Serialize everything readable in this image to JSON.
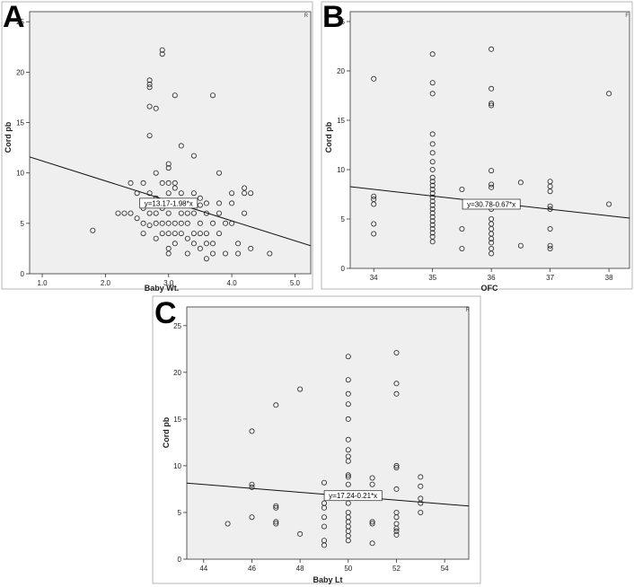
{
  "chart_data": [
    {
      "panel": "A",
      "type": "scatter",
      "xlabel": "Baby Wt.",
      "ylabel": "Cord pb",
      "xlim": [
        0.8,
        5.25
      ],
      "ylim": [
        0,
        26
      ],
      "xticks": [
        "1.0",
        "2.0",
        "3.0",
        "4.0",
        "5.0"
      ],
      "xtick_values": [
        1,
        2,
        3,
        4,
        5
      ],
      "yticks": [
        "0",
        "5",
        "10",
        "15",
        "20",
        "25"
      ],
      "ytick_values": [
        0,
        5,
        10,
        15,
        20,
        25
      ],
      "corner_mark": "R",
      "fit": {
        "label": "y=13.17-1.98*x",
        "intercept": 13.17,
        "slope": -1.98,
        "label_at": [
          3.0,
          7.0
        ]
      },
      "points": [
        [
          1.8,
          4.3
        ],
        [
          2.2,
          6
        ],
        [
          2.3,
          6
        ],
        [
          2.4,
          6
        ],
        [
          2.4,
          9
        ],
        [
          2.5,
          8
        ],
        [
          2.5,
          5.5
        ],
        [
          2.6,
          4
        ],
        [
          2.6,
          5
        ],
        [
          2.6,
          9
        ],
        [
          2.6,
          6.5
        ],
        [
          2.7,
          4.8
        ],
        [
          2.7,
          6
        ],
        [
          2.7,
          7
        ],
        [
          2.7,
          8
        ],
        [
          2.7,
          13.7
        ],
        [
          2.7,
          16.6
        ],
        [
          2.7,
          18.5
        ],
        [
          2.7,
          18.8
        ],
        [
          2.7,
          19.2
        ],
        [
          2.8,
          3.5
        ],
        [
          2.8,
          5
        ],
        [
          2.8,
          6
        ],
        [
          2.8,
          7.5
        ],
        [
          2.8,
          10
        ],
        [
          2.8,
          16.4
        ],
        [
          2.9,
          4
        ],
        [
          2.9,
          5
        ],
        [
          2.9,
          6.5
        ],
        [
          2.9,
          9
        ],
        [
          2.9,
          21.8
        ],
        [
          2.9,
          22.2
        ],
        [
          3.0,
          2
        ],
        [
          3.0,
          2.5
        ],
        [
          3.0,
          4
        ],
        [
          3.0,
          5
        ],
        [
          3.0,
          6
        ],
        [
          3.0,
          7
        ],
        [
          3.0,
          8
        ],
        [
          3.0,
          9
        ],
        [
          3.0,
          10.5
        ],
        [
          3.0,
          10.9
        ],
        [
          3.1,
          3
        ],
        [
          3.1,
          4
        ],
        [
          3.1,
          5
        ],
        [
          3.1,
          7
        ],
        [
          3.1,
          8.5
        ],
        [
          3.1,
          9
        ],
        [
          3.1,
          17.7
        ],
        [
          3.2,
          4
        ],
        [
          3.2,
          5
        ],
        [
          3.2,
          6
        ],
        [
          3.2,
          7
        ],
        [
          3.2,
          8
        ],
        [
          3.2,
          12.7
        ],
        [
          3.3,
          2
        ],
        [
          3.3,
          3.5
        ],
        [
          3.3,
          5
        ],
        [
          3.3,
          6
        ],
        [
          3.3,
          7
        ],
        [
          3.4,
          3
        ],
        [
          3.4,
          4
        ],
        [
          3.4,
          6
        ],
        [
          3.4,
          8
        ],
        [
          3.4,
          11.7
        ],
        [
          3.5,
          2.5
        ],
        [
          3.5,
          4
        ],
        [
          3.5,
          5
        ],
        [
          3.5,
          6.8
        ],
        [
          3.5,
          7.5
        ],
        [
          3.6,
          1.5
        ],
        [
          3.6,
          3
        ],
        [
          3.6,
          4
        ],
        [
          3.6,
          6
        ],
        [
          3.6,
          7
        ],
        [
          3.7,
          2
        ],
        [
          3.7,
          3
        ],
        [
          3.7,
          5
        ],
        [
          3.7,
          17.7
        ],
        [
          3.8,
          4
        ],
        [
          3.8,
          6
        ],
        [
          3.8,
          7
        ],
        [
          3.8,
          10
        ],
        [
          3.9,
          2
        ],
        [
          3.9,
          5
        ],
        [
          4.0,
          5
        ],
        [
          4.0,
          7
        ],
        [
          4.0,
          8
        ],
        [
          4.1,
          2
        ],
        [
          4.1,
          3
        ],
        [
          4.2,
          8
        ],
        [
          4.2,
          8.5
        ],
        [
          4.2,
          6
        ],
        [
          4.3,
          2.5
        ],
        [
          4.3,
          8
        ],
        [
          4.6,
          2
        ]
      ]
    },
    {
      "panel": "B",
      "type": "scatter",
      "xlabel": "OFC",
      "ylabel": "Cord pb",
      "xlim": [
        33.6,
        38.35
      ],
      "ylim": [
        0,
        26
      ],
      "xticks": [
        "34",
        "35",
        "36",
        "37",
        "38"
      ],
      "xtick_values": [
        34,
        35,
        36,
        37,
        38
      ],
      "yticks": [
        "0",
        "5",
        "10",
        "15",
        "20",
        "25"
      ],
      "ytick_values": [
        0,
        5,
        10,
        15,
        20,
        25
      ],
      "corner_mark": "F",
      "fit": {
        "label": "y=30.78-0.67*x",
        "intercept": 30.78,
        "slope": -0.67,
        "label_at": [
          36.0,
          6.5
        ]
      },
      "points": [
        [
          34,
          3.5
        ],
        [
          34,
          4.5
        ],
        [
          34,
          6.5
        ],
        [
          34,
          7
        ],
        [
          34,
          7.3
        ],
        [
          34,
          19.2
        ],
        [
          35,
          2.7
        ],
        [
          35,
          3.2
        ],
        [
          35,
          3.6
        ],
        [
          35,
          4
        ],
        [
          35,
          4.4
        ],
        [
          35,
          4.8
        ],
        [
          35,
          5.2
        ],
        [
          35,
          5.6
        ],
        [
          35,
          6
        ],
        [
          35,
          6.4
        ],
        [
          35,
          6.8
        ],
        [
          35,
          7.2
        ],
        [
          35,
          7.6
        ],
        [
          35,
          8
        ],
        [
          35,
          8.4
        ],
        [
          35,
          8.8
        ],
        [
          35,
          9.2
        ],
        [
          35,
          10
        ],
        [
          35,
          10.8
        ],
        [
          35,
          11.7
        ],
        [
          35,
          12.6
        ],
        [
          35,
          13.6
        ],
        [
          35,
          17.7
        ],
        [
          35,
          18.8
        ],
        [
          35,
          21.7
        ],
        [
          35.5,
          2
        ],
        [
          35.5,
          4
        ],
        [
          35.5,
          8
        ],
        [
          36,
          1.5
        ],
        [
          36,
          2
        ],
        [
          36,
          2.6
        ],
        [
          36,
          3
        ],
        [
          36,
          3.5
        ],
        [
          36,
          4
        ],
        [
          36,
          4.5
        ],
        [
          36,
          5
        ],
        [
          36,
          6
        ],
        [
          36,
          6.5
        ],
        [
          36,
          8.2
        ],
        [
          36,
          8.5
        ],
        [
          36,
          9.9
        ],
        [
          36,
          16.5
        ],
        [
          36,
          16.7
        ],
        [
          36,
          18.2
        ],
        [
          36,
          22.2
        ],
        [
          36.5,
          2.3
        ],
        [
          36.5,
          8.7
        ],
        [
          37,
          2
        ],
        [
          37,
          2.3
        ],
        [
          37,
          4
        ],
        [
          37,
          6
        ],
        [
          37,
          6.3
        ],
        [
          37,
          7.8
        ],
        [
          37,
          8.3
        ],
        [
          37,
          8.8
        ],
        [
          38,
          6.5
        ],
        [
          38,
          17.7
        ]
      ]
    },
    {
      "panel": "C",
      "type": "scatter",
      "xlabel": "Baby Lt",
      "ylabel": "Cord pb",
      "xlim": [
        43.3,
        55.0
      ],
      "ylim": [
        0,
        27
      ],
      "xticks": [
        "44",
        "46",
        "48",
        "50",
        "52",
        "54"
      ],
      "xtick_values": [
        44,
        46,
        48,
        50,
        52,
        54
      ],
      "yticks": [
        "0",
        "5",
        "10",
        "15",
        "20",
        "25"
      ],
      "ytick_values": [
        0,
        5,
        10,
        15,
        20,
        25
      ],
      "corner_mark": "R",
      "fit": {
        "label": "y=17.24-0.21*x",
        "intercept": 17.24,
        "slope": -0.21,
        "label_at": [
          50.2,
          6.8
        ]
      },
      "points": [
        [
          45,
          3.8
        ],
        [
          46,
          4.5
        ],
        [
          46,
          7.7
        ],
        [
          46,
          8
        ],
        [
          46,
          13.7
        ],
        [
          47,
          3.8
        ],
        [
          47,
          4
        ],
        [
          47,
          5.5
        ],
        [
          47,
          5.7
        ],
        [
          47,
          16.5
        ],
        [
          48,
          2.7
        ],
        [
          48,
          18.2
        ],
        [
          49,
          1.5
        ],
        [
          49,
          2
        ],
        [
          49,
          3.5
        ],
        [
          49,
          4.5
        ],
        [
          49,
          5.5
        ],
        [
          49,
          6
        ],
        [
          49,
          8.2
        ],
        [
          50,
          2
        ],
        [
          50,
          2.5
        ],
        [
          50,
          3
        ],
        [
          50,
          3.5
        ],
        [
          50,
          4
        ],
        [
          50,
          4.5
        ],
        [
          50,
          5
        ],
        [
          50,
          6
        ],
        [
          50,
          7
        ],
        [
          50,
          8
        ],
        [
          50,
          8.8
        ],
        [
          50,
          9
        ],
        [
          50,
          10.5
        ],
        [
          50,
          11
        ],
        [
          50,
          11.7
        ],
        [
          50,
          12.8
        ],
        [
          50,
          15
        ],
        [
          50,
          16.6
        ],
        [
          50,
          17.7
        ],
        [
          50,
          19.2
        ],
        [
          50,
          21.7
        ],
        [
          51,
          1.7
        ],
        [
          51,
          3.8
        ],
        [
          51,
          4
        ],
        [
          51,
          8
        ],
        [
          51,
          8.7
        ],
        [
          52,
          2.6
        ],
        [
          52,
          3
        ],
        [
          52,
          3.3
        ],
        [
          52,
          3.8
        ],
        [
          52,
          4.5
        ],
        [
          52,
          5
        ],
        [
          52,
          7.5
        ],
        [
          52,
          9.8
        ],
        [
          52,
          10
        ],
        [
          52,
          17.7
        ],
        [
          52,
          18.8
        ],
        [
          52,
          22.1
        ],
        [
          53,
          5
        ],
        [
          53,
          6
        ],
        [
          53,
          6.5
        ],
        [
          53,
          7.8
        ],
        [
          53,
          8.8
        ]
      ]
    }
  ]
}
